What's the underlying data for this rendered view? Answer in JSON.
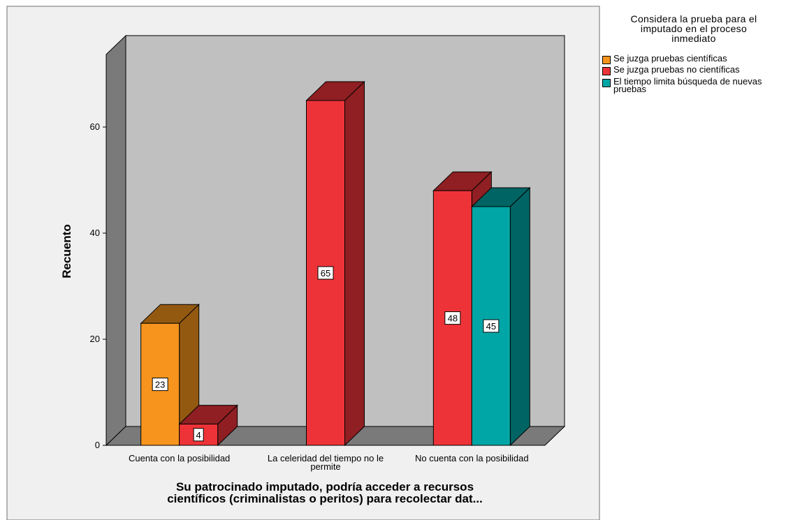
{
  "chart_data": {
    "type": "bar",
    "categories": [
      "Cuenta con la posibilidad",
      "La celeridad del tiempo no le permite",
      "No cuenta con la posibilidad"
    ],
    "series": [
      {
        "name": "Se juzga pruebas científicas",
        "values": [
          23,
          null,
          null
        ],
        "color": "#f7941d"
      },
      {
        "name": "Se juzga pruebas no científicas",
        "values": [
          4,
          65,
          48
        ],
        "color": "#ee3338"
      },
      {
        "name": "El tiempo limita búsqueda de nuevas pruebas",
        "values": [
          null,
          null,
          45
        ],
        "color": "#00a6a6"
      }
    ],
    "bar_labels": [
      {
        "series": 0,
        "category": 0,
        "text": "23"
      },
      {
        "series": 1,
        "category": 0,
        "text": "4"
      },
      {
        "series": 1,
        "category": 1,
        "text": "65"
      },
      {
        "series": 1,
        "category": 2,
        "text": "48"
      },
      {
        "series": 2,
        "category": 2,
        "text": "45"
      }
    ],
    "ylabel": "Recuento",
    "xlabel": "Su patrocinado imputado, podría acceder a recursos científicos (criminalistas o peritos) para recolectar dat...",
    "xlabel_lines": [
      "Su patrocinado imputado, podría acceder a recursos",
      "científicos (criminalistas o peritos) para recolectar dat..."
    ],
    "category_label_lines": [
      [
        "Cuenta con la posibilidad"
      ],
      [
        "La celeridad del tiempo no le",
        "permite"
      ],
      [
        "No cuenta con la posibilidad"
      ]
    ],
    "yticks": [
      0,
      20,
      40,
      60
    ],
    "ylim": [
      0,
      77
    ],
    "legend": {
      "title": "Considera la prueba para el imputado en el proceso inmediato",
      "title_lines": [
        "Considera la prueba para el",
        "imputado en el proceso",
        "inmediato"
      ],
      "items": [
        "Se juzga pruebas científicas",
        "Se juzga pruebas no científicas",
        "El tiempo limita búsqueda de nuevas pruebas"
      ],
      "placement": "right"
    },
    "style": "3d",
    "grid": false
  }
}
